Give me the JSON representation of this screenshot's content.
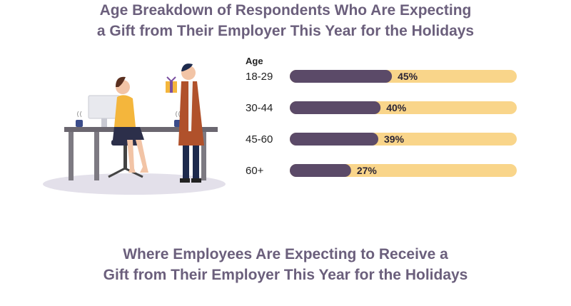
{
  "title_top": {
    "line1": "Age Breakdown of Respondents Who Are Expecting",
    "line2": "a Gift from Their Employer This Year for the Holidays"
  },
  "title_bottom": {
    "line1": "Where Employees Are Expecting to Receive a",
    "line2": "Gift from Their Employer This Year for the Holidays"
  },
  "colors": {
    "title": "#6b5f7c",
    "filled": "#5b4a68",
    "remainder": "#f9d58a"
  },
  "chart_data": {
    "type": "bar",
    "orientation": "horizontal",
    "stacked_to_100": true,
    "legend_title": "Age",
    "categories": [
      "18-29",
      "30-44",
      "45-60",
      "60+"
    ],
    "values": [
      45,
      40,
      39,
      27
    ],
    "value_labels": [
      "45%",
      "40%",
      "39%",
      "27%"
    ],
    "xlim": [
      0,
      100
    ]
  }
}
